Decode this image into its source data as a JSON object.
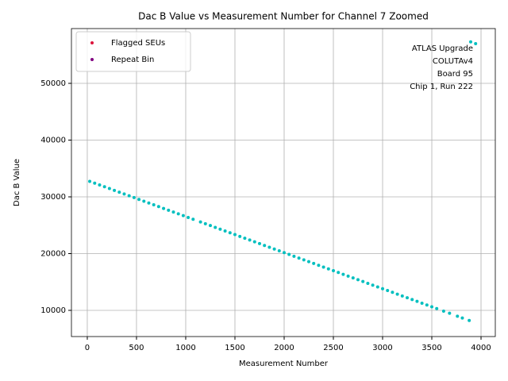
{
  "chart_data": {
    "type": "scatter",
    "title": "Dac B Value vs Measurement Number for Channel 7 Zoomed",
    "x_label": "Measurement Number",
    "y_label": "Dac B Value",
    "annotation": [
      "ATLAS Upgrade",
      "COLUTAv4",
      "Board 95",
      "Chip 1, Run 222"
    ],
    "legend": "upper left",
    "grid": true,
    "xlim": [
      -161,
      4145
    ],
    "ylim": [
      5385,
      59650
    ],
    "xticks": [
      0,
      500,
      1000,
      1500,
      2000,
      2500,
      3000,
      3500,
      4000
    ],
    "yticks": [
      10000,
      20000,
      30000,
      40000,
      50000
    ],
    "series": [
      {
        "name": "Flagged SEUs",
        "color": "#dc143c",
        "x": [],
        "values": []
      },
      {
        "name": "Repeat Bin",
        "color": "#800080",
        "x": [],
        "values": []
      },
      {
        "name": null,
        "color": "#00bfbf",
        "x": [
          25,
          75,
          125,
          175,
          225,
          275,
          325,
          375,
          425,
          475,
          525,
          575,
          625,
          675,
          725,
          775,
          825,
          875,
          925,
          975,
          1025,
          1075,
          1150,
          1200,
          1250,
          1300,
          1350,
          1400,
          1450,
          1500,
          1550,
          1600,
          1650,
          1700,
          1750,
          1800,
          1850,
          1900,
          1950,
          2000,
          2050,
          2100,
          2150,
          2200,
          2250,
          2300,
          2350,
          2400,
          2450,
          2500,
          2550,
          2600,
          2650,
          2700,
          2750,
          2800,
          2850,
          2900,
          2950,
          3000,
          3050,
          3100,
          3150,
          3200,
          3250,
          3300,
          3350,
          3400,
          3450,
          3500,
          3550,
          3620,
          3680,
          3760,
          3810,
          3880,
          3895,
          3945
        ],
        "values": [
          32730,
          32410,
          32100,
          31780,
          31460,
          31140,
          30823,
          30505,
          30187,
          29869,
          29551,
          29233,
          28915,
          28597,
          28279,
          27961,
          27643,
          27325,
          27007,
          26689,
          26371,
          26053,
          25576,
          25258,
          24940,
          24622,
          24304,
          23986,
          23668,
          23350,
          23032,
          22714,
          22396,
          22078,
          21760,
          21442,
          21124,
          20806,
          20488,
          20170,
          19852,
          19534,
          19216,
          18898,
          18580,
          18262,
          17944,
          17626,
          17308,
          16990,
          16672,
          16354,
          16036,
          15718,
          15400,
          15082,
          14764,
          14446,
          14128,
          13810,
          13492,
          13174,
          12856,
          12538,
          12220,
          11902,
          11584,
          11266,
          10948,
          10630,
          10312,
          9867,
          9485,
          8976,
          8658,
          8213,
          57300,
          57000
        ]
      }
    ]
  }
}
